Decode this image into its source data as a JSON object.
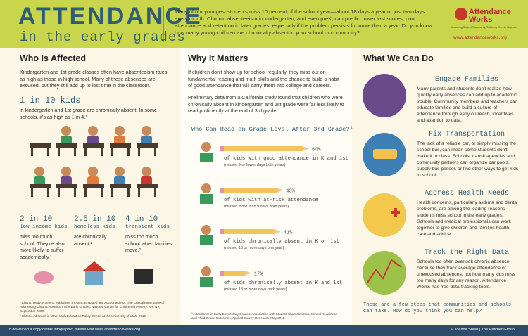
{
  "header": {
    "title": "ATTENDANCE",
    "subtitle": "in the early grades",
    "intro": "Many of our youngest students miss 10 percent of the school year—about 18 days a year or just two days every month. Chronic absenteeism in kindergarten, and even preK, can predict lower test scores, poor attendance and retention in later grades, especially if the problem persists for more than a year. Do you know how many young children are chronically absent in your school or community?",
    "logo": "Attendance Works",
    "tagline": "Advancing Student Success by Reducing Chronic Absence",
    "url": "www.attendanceworks.org"
  },
  "left": {
    "heading": "Who Is Affected",
    "text": "Kindergarten and 1st grade classes often have absenteeism rates as high as those in high school. Many of these absences are excused, but they still add up to lost time in the classroom.",
    "stat": "1 in 10 kids",
    "stat_text": "in kindergarten and 1st grade are chronically absent. In some schools, it's as high as 1 in 4.¹",
    "stats": [
      {
        "big": "2 in 10",
        "label": "low-income kids",
        "text": "miss too much school. They're also more likely to suffer academically.¹"
      },
      {
        "big": "2.5 in 10",
        "label": "homeless kids",
        "text": "are chronically absent.²"
      },
      {
        "big": "4 in 10",
        "label": "transient kids",
        "text": "miss too much school when families move.²"
      }
    ],
    "footnotes": [
      "¹ Chang, Hedy; Romero, Mariajose. Present, Engaged and Accounted For: The Critical Importance of Addressing Chronic Absence in the Early Grades. National Center for Children in Poverty: NY: NY, September 2008.",
      "² Chronic Absence in Utah. Utah Education Policy Center at the University of Utah, 2012."
    ]
  },
  "middle": {
    "heading": "Why It Matters",
    "p1": "If children don't show up for school regularly, they miss out on fundamental reading and math skills and the chance to build a habit of good attendance that will carry them into college and careers.",
    "p2": "Preliminary data from a California study found that children who were chronically absent in kindergarten and 1st grade were far less likely to read proficiently at the end of 3rd grade.",
    "chart_data": {
      "type": "bar",
      "title": "Who Can Read on Grade Level After 3rd Grade?³",
      "categories": [
        "of kids with good attendance in K and 1st",
        "of kids with at-risk attendance",
        "of kids chronically absent in K or 1st",
        "of kids chronically absent in K and 1st"
      ],
      "notes": [
        "(missed 9 or fewer days both years)",
        "(missed more than 9 days both years)",
        "(missed 18 or more days one year)",
        "(missed 18 or more days both years)"
      ],
      "values": [
        64,
        43,
        41,
        17
      ],
      "value_labels": [
        "64%",
        "43%",
        "41%",
        "17%"
      ],
      "xlim": [
        0,
        100
      ],
      "color": "#f2c45a"
    },
    "footnote": "³ Attendance in Early Elementary Grades: Association with Student Characteristics, School Readiness and Third Grade Outcomes, Applied Survey Research. May 2011."
  },
  "right": {
    "heading": "What We Can Do",
    "items": [
      {
        "title": "Engage Families",
        "text": "Many parents and students don't realize how quickly early absences can add up to academic trouble. Community members and teachers can educate families and build a culture of attendance through early outreach, incentives and attention to data."
      },
      {
        "title": "Fix Transportation",
        "text": "The lack of a reliable car, or simply missing the school bus, can mean some students don't make it to class. Schools, transit agencies and community partners can organize car pools, supply bus passes or find other ways to get kids to school."
      },
      {
        "title": "Address Health Needs",
        "text": "Health concerns, particularly asthma and dental problems, are among the leading reasons students miss school in the early grades. Schools and medical professionals can work together to give children and families health care and advice."
      },
      {
        "title": "Track the Right Data",
        "text": "Schools too often overlook chronic absence because they track average attendance or unexcused absences, not how many kids miss too many days for any reason. Attendance Works has free data-tracking tools."
      }
    ],
    "closing": "These are a few steps that communities and schools can take. How do you think you can help?"
  },
  "footer": {
    "left": "To download a copy of this infographic, please visit www.attendanceworks.org.",
    "right": "© Joanna Shieh | The Hatcher Group"
  }
}
